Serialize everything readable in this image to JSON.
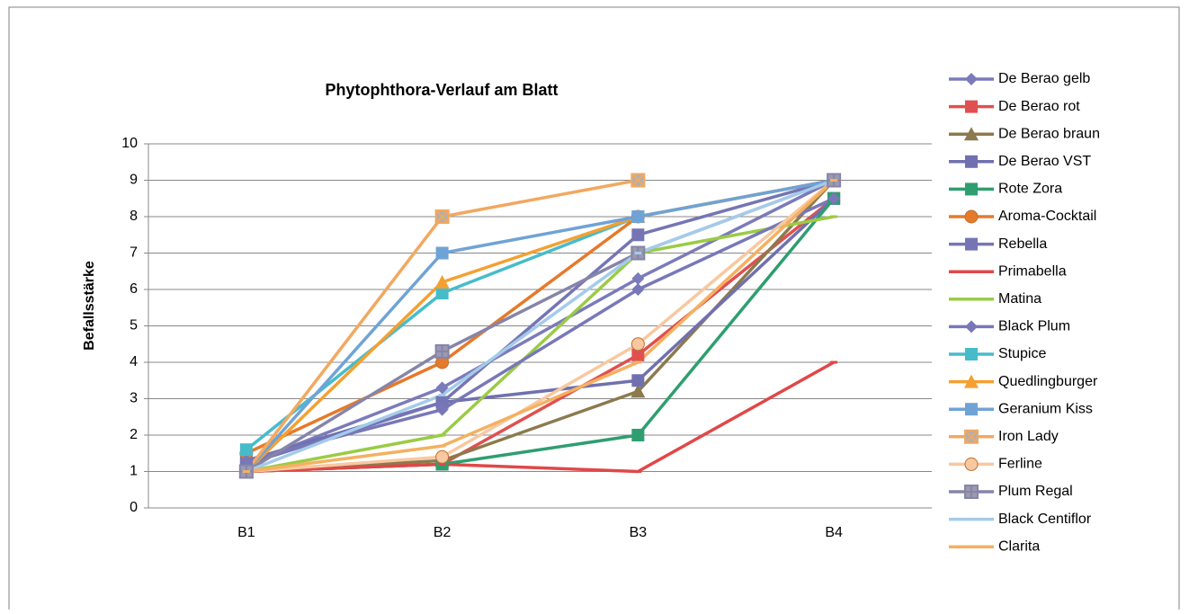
{
  "chart_data": {
    "type": "line",
    "title": "Phytophthora-Verlauf am Blatt",
    "y_label": "Befallsstärke",
    "categories": [
      "B1",
      "B2",
      "B3",
      "B4"
    ],
    "ylim": [
      0,
      10
    ],
    "yticks": [
      0,
      1,
      2,
      3,
      4,
      5,
      6,
      7,
      8,
      9,
      10
    ],
    "grid": true,
    "legend": "right",
    "series": [
      {
        "name": "De Berao gelb",
        "color": "#7b7bba",
        "marker": "diamond",
        "values": [
          1.2,
          3.3,
          6.3,
          9
        ]
      },
      {
        "name": "De Berao rot",
        "color": "#e05050",
        "marker": "square",
        "values": [
          1,
          1.2,
          4.2,
          8.5
        ]
      },
      {
        "name": "De Berao braun",
        "color": "#8c7a4e",
        "marker": "triangle",
        "values": [
          1,
          1.3,
          3.2,
          9
        ]
      },
      {
        "name": "De Berao VST",
        "color": "#7070b0",
        "marker": "square",
        "values": [
          1.3,
          2.9,
          3.5,
          8.5
        ]
      },
      {
        "name": "Rote Zora",
        "color": "#2e9e70",
        "marker": "square",
        "values": [
          1,
          1.2,
          2,
          8.5
        ]
      },
      {
        "name": "Aroma-Cocktail",
        "color": "#e57a2a",
        "marker": "circle",
        "values": [
          1.5,
          4,
          8,
          9
        ]
      },
      {
        "name": "Rebella",
        "color": "#7575b5",
        "marker": "square",
        "values": [
          1.2,
          2.9,
          7.5,
          9
        ]
      },
      {
        "name": "Primabella",
        "color": "#e04848",
        "marker": "dash",
        "values": [
          1,
          1.2,
          1,
          4
        ]
      },
      {
        "name": "Matina",
        "color": "#9acb46",
        "marker": "dash",
        "values": [
          1,
          2,
          7,
          8
        ]
      },
      {
        "name": "Black Plum",
        "color": "#7878b8",
        "marker": "diamond",
        "values": [
          1.3,
          2.7,
          6,
          8.5
        ]
      },
      {
        "name": "Stupice",
        "color": "#46bccb",
        "marker": "square",
        "values": [
          1.6,
          5.9,
          8,
          9
        ]
      },
      {
        "name": "Quedlingburger",
        "color": "#f5a030",
        "marker": "triangle",
        "values": [
          1,
          6.2,
          8,
          9
        ]
      },
      {
        "name": "Geranium Kiss",
        "color": "#6fa3d6",
        "marker": "square",
        "values": [
          1,
          7,
          8,
          9
        ]
      },
      {
        "name": "Iron Lady",
        "color": "#f2a860",
        "marker": "x",
        "values": [
          1,
          8,
          9,
          null
        ]
      },
      {
        "name": "Ferline",
        "color": "#f8c8a0",
        "marker": "circle",
        "values": [
          1,
          1.4,
          4.5,
          9
        ]
      },
      {
        "name": "Plum Regal",
        "color": "#8585aa",
        "marker": "plus",
        "values": [
          1,
          4.3,
          7,
          9
        ]
      },
      {
        "name": "Black Centiflor",
        "color": "#a4cbea",
        "marker": "dash",
        "values": [
          1,
          3.1,
          7,
          9
        ]
      },
      {
        "name": "Clarita",
        "color": "#f5b060",
        "marker": "dash",
        "values": [
          1,
          1.7,
          4,
          9
        ]
      }
    ]
  }
}
